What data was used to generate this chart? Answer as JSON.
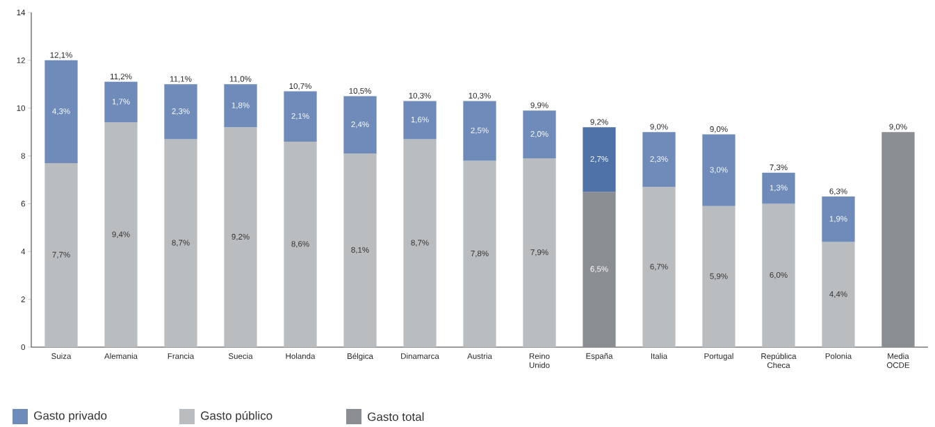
{
  "chart_data": {
    "type": "bar",
    "stacked": true,
    "categories": [
      "Suiza",
      "Alemania",
      "Francia",
      "Suecia",
      "Holanda",
      "Bélgica",
      "Dinamarca",
      "Austria",
      "Reino Unido",
      "España",
      "Italia",
      "Portugal",
      "República Checa",
      "Polonia",
      "Media OCDE"
    ],
    "series": [
      {
        "name": "Gasto público",
        "color": "#babdc0",
        "colors": [
          "#babdc0",
          "#babdc0",
          "#babdc0",
          "#babdc0",
          "#babdc0",
          "#babdc0",
          "#babdc0",
          "#babdc0",
          "#babdc0",
          "#8a8d91",
          "#babdc0",
          "#babdc0",
          "#babdc0",
          "#babdc0",
          "#babdc0"
        ],
        "values": [
          7.7,
          9.4,
          8.7,
          9.2,
          8.6,
          8.1,
          8.7,
          7.8,
          7.9,
          6.5,
          6.7,
          5.9,
          6.0,
          4.4,
          null
        ],
        "value_labels": [
          "7,7%",
          "9,4%",
          "8,7%",
          "9,2%",
          "8,6%",
          "8,1%",
          "8,7%",
          "7,8%",
          "7,9%",
          "6,5%",
          "6,7%",
          "5,9%",
          "6,0%",
          "4,4%",
          null
        ]
      },
      {
        "name": "Gasto privado",
        "color": "#6f8bb9",
        "colors": [
          "#6f8bb9",
          "#6f8bb9",
          "#6f8bb9",
          "#6f8bb9",
          "#6f8bb9",
          "#6f8bb9",
          "#6f8bb9",
          "#6f8bb9",
          "#6f8bb9",
          "#4f73a8",
          "#6f8bb9",
          "#6f8bb9",
          "#6f8bb9",
          "#6f8bb9",
          "#6f8bb9"
        ],
        "values": [
          4.3,
          1.7,
          2.3,
          1.8,
          2.1,
          2.4,
          1.6,
          2.5,
          2.0,
          2.7,
          2.3,
          3.0,
          1.3,
          1.9,
          null
        ],
        "value_labels": [
          "4,3%",
          "1,7%",
          "2,3%",
          "1,8%",
          "2,1%",
          "2,4%",
          "1,6%",
          "2,5%",
          "2,0%",
          "2,7%",
          "2,3%",
          "3,0%",
          "1,3%",
          "1,9%",
          null
        ]
      },
      {
        "name": "Gasto total",
        "color": "#8a8d91",
        "values": [
          null,
          null,
          null,
          null,
          null,
          null,
          null,
          null,
          null,
          null,
          null,
          null,
          null,
          null,
          9.0
        ]
      }
    ],
    "totals": [
      "12,1%",
      "11,2%",
      "11,1%",
      "11,0%",
      "10,7%",
      "10,5%",
      "10,3%",
      "10,3%",
      "9,9%",
      "9,2%",
      "9,0%",
      "9,0%",
      "7,3%",
      "6,3%",
      "9,0%"
    ],
    "ylim": [
      0,
      14
    ],
    "yticks": [
      0,
      2,
      4,
      6,
      8,
      10,
      12,
      14
    ],
    "grid": false,
    "legend": "bottom left"
  }
}
